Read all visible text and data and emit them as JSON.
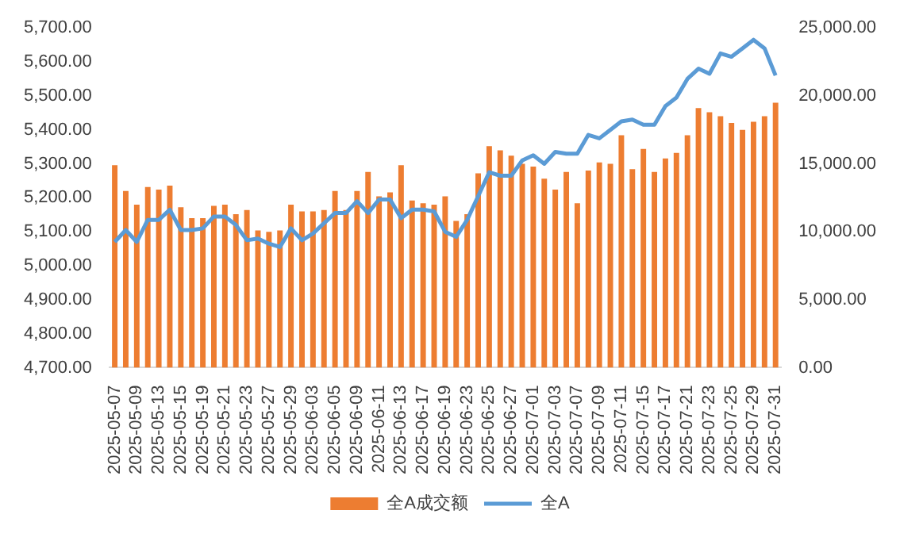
{
  "chart_data": {
    "type": "bar",
    "categories": [
      "2025-05-07",
      null,
      "2025-05-09",
      null,
      "2025-05-13",
      null,
      "2025-05-15",
      null,
      "2025-05-19",
      null,
      "2025-05-21",
      null,
      "2025-05-23",
      null,
      "2025-05-27",
      null,
      "2025-05-29",
      null,
      "2025-06-03",
      null,
      "2025-06-05",
      null,
      "2025-06-09",
      null,
      "2025-06-11",
      null,
      "2025-06-13",
      null,
      "2025-06-17",
      null,
      "2025-06-19",
      null,
      "2025-06-23",
      null,
      "2025-06-25",
      null,
      "2025-06-27",
      null,
      "2025-07-01",
      null,
      "2025-07-03",
      null,
      "2025-07-07",
      null,
      "2025-07-09",
      null,
      "2025-07-11",
      null,
      "2025-07-15",
      null,
      "2025-07-17",
      null,
      "2025-07-21",
      null,
      "2025-07-23",
      null,
      "2025-07-25",
      null,
      "2025-07-29",
      null,
      "2025-07-31"
    ],
    "series": [
      {
        "name": "全A成交额",
        "axis": "y2",
        "color": "#ed7d31",
        "values": [
          14900,
          13000,
          12000,
          13300,
          13100,
          13400,
          11800,
          11000,
          11000,
          11900,
          12000,
          11300,
          11600,
          10100,
          10000,
          10100,
          12000,
          11500,
          11500,
          11600,
          13000,
          11600,
          13000,
          14400,
          12600,
          12900,
          14900,
          12300,
          12100,
          12000,
          12600,
          10800,
          11300,
          14300,
          16300,
          16000,
          15600,
          15000,
          14800,
          13900,
          13100,
          14400,
          12100,
          14500,
          15100,
          15000,
          17100,
          14600,
          16100,
          14400,
          15400,
          15800,
          17100,
          19100,
          18800,
          18500,
          18000,
          17500,
          18100,
          18500,
          19500
        ]
      },
      {
        "name": "全A",
        "type": "line",
        "axis": "y",
        "color": "#5b9bd5",
        "values": [
          5070,
          5105,
          5070,
          5135,
          5135,
          5165,
          5105,
          5105,
          5110,
          5145,
          5145,
          5120,
          5075,
          5080,
          5065,
          5055,
          5110,
          5075,
          5095,
          5125,
          5155,
          5155,
          5190,
          5155,
          5195,
          5195,
          5140,
          5165,
          5165,
          5160,
          5100,
          5085,
          5135,
          5205,
          5275,
          5265,
          5265,
          5310,
          5325,
          5300,
          5335,
          5330,
          5330,
          5385,
          5375,
          5400,
          5425,
          5430,
          5415,
          5415,
          5470,
          5495,
          5550,
          5580,
          5565,
          5625,
          5615,
          5640,
          5665,
          5640,
          5560
        ]
      }
    ],
    "ylim": [
      4700,
      5700
    ],
    "yticks": [
      {
        "value": 4700,
        "label": "4,700.00"
      },
      {
        "value": 4800,
        "label": "4,800.00"
      },
      {
        "value": 4900,
        "label": "4,900.00"
      },
      {
        "value": 5000,
        "label": "5,000.00"
      },
      {
        "value": 5100,
        "label": "5,100.00"
      },
      {
        "value": 5200,
        "label": "5,200.00"
      },
      {
        "value": 5300,
        "label": "5,300.00"
      },
      {
        "value": 5400,
        "label": "5,400.00"
      },
      {
        "value": 5500,
        "label": "5,500.00"
      },
      {
        "value": 5600,
        "label": "5,600.00"
      },
      {
        "value": 5700,
        "label": "5,700.00"
      }
    ],
    "y2lim": [
      0,
      25000
    ],
    "y2ticks": [
      {
        "value": 0,
        "label": "0.00"
      },
      {
        "value": 5000,
        "label": "5,000.00"
      },
      {
        "value": 10000,
        "label": "10,000.00"
      },
      {
        "value": 15000,
        "label": "15,000.00"
      },
      {
        "value": 20000,
        "label": "20,000.00"
      },
      {
        "value": 25000,
        "label": "25,000.00"
      }
    ],
    "grid": false,
    "legend": "bottom",
    "marker": "none"
  }
}
